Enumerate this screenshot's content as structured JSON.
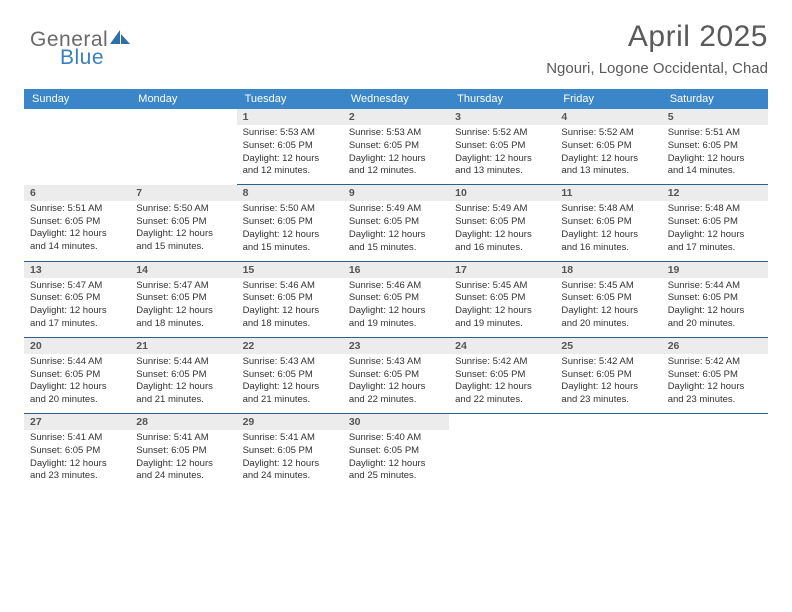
{
  "logo": {
    "general": "General",
    "blue": "Blue"
  },
  "title": {
    "month": "April 2025",
    "location": "Ngouri, Logone Occidental, Chad"
  },
  "daynames": [
    "Sunday",
    "Monday",
    "Tuesday",
    "Wednesday",
    "Thursday",
    "Friday",
    "Saturday"
  ],
  "colors": {
    "header_bg": "#3a86c8",
    "row_border": "#2f5f8f",
    "daybar_bg": "#ececec"
  },
  "weeks": [
    [
      {
        "n": "",
        "sunrise": "",
        "sunset": "",
        "daylight": ""
      },
      {
        "n": "",
        "sunrise": "",
        "sunset": "",
        "daylight": ""
      },
      {
        "n": "1",
        "sunrise": "Sunrise: 5:53 AM",
        "sunset": "Sunset: 6:05 PM",
        "daylight": "Daylight: 12 hours and 12 minutes."
      },
      {
        "n": "2",
        "sunrise": "Sunrise: 5:53 AM",
        "sunset": "Sunset: 6:05 PM",
        "daylight": "Daylight: 12 hours and 12 minutes."
      },
      {
        "n": "3",
        "sunrise": "Sunrise: 5:52 AM",
        "sunset": "Sunset: 6:05 PM",
        "daylight": "Daylight: 12 hours and 13 minutes."
      },
      {
        "n": "4",
        "sunrise": "Sunrise: 5:52 AM",
        "sunset": "Sunset: 6:05 PM",
        "daylight": "Daylight: 12 hours and 13 minutes."
      },
      {
        "n": "5",
        "sunrise": "Sunrise: 5:51 AM",
        "sunset": "Sunset: 6:05 PM",
        "daylight": "Daylight: 12 hours and 14 minutes."
      }
    ],
    [
      {
        "n": "6",
        "sunrise": "Sunrise: 5:51 AM",
        "sunset": "Sunset: 6:05 PM",
        "daylight": "Daylight: 12 hours and 14 minutes."
      },
      {
        "n": "7",
        "sunrise": "Sunrise: 5:50 AM",
        "sunset": "Sunset: 6:05 PM",
        "daylight": "Daylight: 12 hours and 15 minutes."
      },
      {
        "n": "8",
        "sunrise": "Sunrise: 5:50 AM",
        "sunset": "Sunset: 6:05 PM",
        "daylight": "Daylight: 12 hours and 15 minutes."
      },
      {
        "n": "9",
        "sunrise": "Sunrise: 5:49 AM",
        "sunset": "Sunset: 6:05 PM",
        "daylight": "Daylight: 12 hours and 15 minutes."
      },
      {
        "n": "10",
        "sunrise": "Sunrise: 5:49 AM",
        "sunset": "Sunset: 6:05 PM",
        "daylight": "Daylight: 12 hours and 16 minutes."
      },
      {
        "n": "11",
        "sunrise": "Sunrise: 5:48 AM",
        "sunset": "Sunset: 6:05 PM",
        "daylight": "Daylight: 12 hours and 16 minutes."
      },
      {
        "n": "12",
        "sunrise": "Sunrise: 5:48 AM",
        "sunset": "Sunset: 6:05 PM",
        "daylight": "Daylight: 12 hours and 17 minutes."
      }
    ],
    [
      {
        "n": "13",
        "sunrise": "Sunrise: 5:47 AM",
        "sunset": "Sunset: 6:05 PM",
        "daylight": "Daylight: 12 hours and 17 minutes."
      },
      {
        "n": "14",
        "sunrise": "Sunrise: 5:47 AM",
        "sunset": "Sunset: 6:05 PM",
        "daylight": "Daylight: 12 hours and 18 minutes."
      },
      {
        "n": "15",
        "sunrise": "Sunrise: 5:46 AM",
        "sunset": "Sunset: 6:05 PM",
        "daylight": "Daylight: 12 hours and 18 minutes."
      },
      {
        "n": "16",
        "sunrise": "Sunrise: 5:46 AM",
        "sunset": "Sunset: 6:05 PM",
        "daylight": "Daylight: 12 hours and 19 minutes."
      },
      {
        "n": "17",
        "sunrise": "Sunrise: 5:45 AM",
        "sunset": "Sunset: 6:05 PM",
        "daylight": "Daylight: 12 hours and 19 minutes."
      },
      {
        "n": "18",
        "sunrise": "Sunrise: 5:45 AM",
        "sunset": "Sunset: 6:05 PM",
        "daylight": "Daylight: 12 hours and 20 minutes."
      },
      {
        "n": "19",
        "sunrise": "Sunrise: 5:44 AM",
        "sunset": "Sunset: 6:05 PM",
        "daylight": "Daylight: 12 hours and 20 minutes."
      }
    ],
    [
      {
        "n": "20",
        "sunrise": "Sunrise: 5:44 AM",
        "sunset": "Sunset: 6:05 PM",
        "daylight": "Daylight: 12 hours and 20 minutes."
      },
      {
        "n": "21",
        "sunrise": "Sunrise: 5:44 AM",
        "sunset": "Sunset: 6:05 PM",
        "daylight": "Daylight: 12 hours and 21 minutes."
      },
      {
        "n": "22",
        "sunrise": "Sunrise: 5:43 AM",
        "sunset": "Sunset: 6:05 PM",
        "daylight": "Daylight: 12 hours and 21 minutes."
      },
      {
        "n": "23",
        "sunrise": "Sunrise: 5:43 AM",
        "sunset": "Sunset: 6:05 PM",
        "daylight": "Daylight: 12 hours and 22 minutes."
      },
      {
        "n": "24",
        "sunrise": "Sunrise: 5:42 AM",
        "sunset": "Sunset: 6:05 PM",
        "daylight": "Daylight: 12 hours and 22 minutes."
      },
      {
        "n": "25",
        "sunrise": "Sunrise: 5:42 AM",
        "sunset": "Sunset: 6:05 PM",
        "daylight": "Daylight: 12 hours and 23 minutes."
      },
      {
        "n": "26",
        "sunrise": "Sunrise: 5:42 AM",
        "sunset": "Sunset: 6:05 PM",
        "daylight": "Daylight: 12 hours and 23 minutes."
      }
    ],
    [
      {
        "n": "27",
        "sunrise": "Sunrise: 5:41 AM",
        "sunset": "Sunset: 6:05 PM",
        "daylight": "Daylight: 12 hours and 23 minutes."
      },
      {
        "n": "28",
        "sunrise": "Sunrise: 5:41 AM",
        "sunset": "Sunset: 6:05 PM",
        "daylight": "Daylight: 12 hours and 24 minutes."
      },
      {
        "n": "29",
        "sunrise": "Sunrise: 5:41 AM",
        "sunset": "Sunset: 6:05 PM",
        "daylight": "Daylight: 12 hours and 24 minutes."
      },
      {
        "n": "30",
        "sunrise": "Sunrise: 5:40 AM",
        "sunset": "Sunset: 6:05 PM",
        "daylight": "Daylight: 12 hours and 25 minutes."
      },
      {
        "n": "",
        "sunrise": "",
        "sunset": "",
        "daylight": ""
      },
      {
        "n": "",
        "sunrise": "",
        "sunset": "",
        "daylight": ""
      },
      {
        "n": "",
        "sunrise": "",
        "sunset": "",
        "daylight": ""
      }
    ]
  ]
}
